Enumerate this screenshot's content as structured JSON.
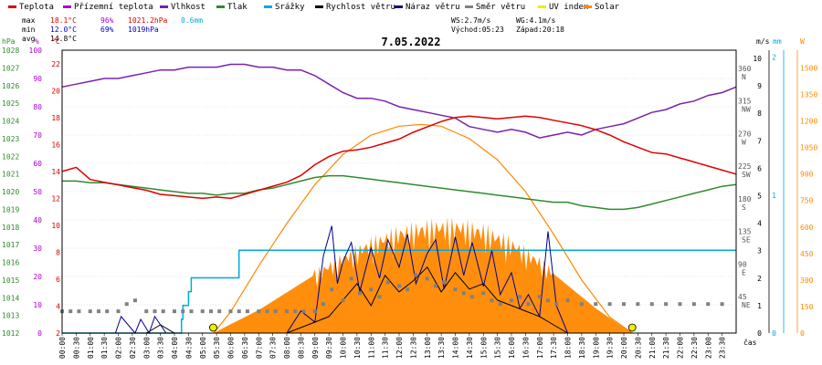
{
  "chart_data": {
    "type": "line",
    "title": "7.05.2022",
    "xlabel": "čas",
    "legend": [
      {
        "name": "Teplota",
        "color": "#dd0000"
      },
      {
        "name": "Přízemní teplota",
        "color": "#aa00cc"
      },
      {
        "name": "Vlhkost",
        "color": "#7a22aa"
      },
      {
        "name": "Tlak",
        "color": "#2e8b2e"
      },
      {
        "name": "Srážky",
        "color": "#00aadd"
      },
      {
        "name": "Rychlost větru",
        "color": "#000000"
      },
      {
        "name": "Náraz větru",
        "color": "#000088"
      },
      {
        "name": "Směr větru",
        "color": "#808080"
      },
      {
        "name": "UV index",
        "color": "#eeee00"
      },
      {
        "name": "Solar",
        "color": "#ff8800"
      }
    ],
    "stats": {
      "max": {
        "label": "max",
        "temp": "18.1°C",
        "hum": "96%",
        "press": "1021.2hPa",
        "rain": "0.6mm"
      },
      "min": {
        "label": "min",
        "temp": "12.0°C",
        "hum": "69%",
        "press": "1019hPa"
      },
      "avg": {
        "label": "avg",
        "temp": "14.8°C"
      }
    },
    "wind_info": {
      "ws": "WS:2.7m/s",
      "wg": "WG:4.1m/s",
      "sunrise": "Východ:05:23",
      "sunset": "Západ:20:18"
    },
    "axes": {
      "hpa": {
        "unit": "hPa",
        "ticks": [
          "1028",
          "1027",
          "1026",
          "1025",
          "1024",
          "1023",
          "1022",
          "1021",
          "1020",
          "1019",
          "1018",
          "1017",
          "1016",
          "1015",
          "1014",
          "1013",
          "1012"
        ],
        "range": [
          1012,
          1028
        ]
      },
      "humidity": {
        "unit": "%",
        "ticks": [
          "100",
          "90",
          "80",
          "70",
          "60",
          "50",
          "40",
          "30",
          "20",
          "10",
          "0"
        ],
        "range": [
          0,
          100
        ]
      },
      "temp": {
        "unit": "°C",
        "ticks": [
          "22",
          "20",
          "18",
          "16",
          "14",
          "12",
          "10",
          "8",
          "6",
          "4",
          "2"
        ],
        "range": [
          2,
          23
        ]
      },
      "wind_dir": {
        "ticks": [
          {
            "deg": "360",
            "dir": "N"
          },
          {
            "deg": "315",
            "dir": "NW"
          },
          {
            "deg": "270",
            "dir": "W"
          },
          {
            "deg": "225",
            "dir": "SW"
          },
          {
            "deg": "180",
            "dir": "S"
          },
          {
            "deg": "135",
            "dir": "SE"
          },
          {
            "deg": "90",
            "dir": "E"
          },
          {
            "deg": "45",
            "dir": "NE"
          }
        ]
      },
      "wind_speed": {
        "unit": "m/s",
        "ticks": [
          "10",
          "9",
          "8",
          "7",
          "6",
          "5",
          "4",
          "3",
          "2",
          "1",
          "0"
        ],
        "range": [
          0,
          10
        ]
      },
      "rain": {
        "unit": "mm",
        "ticks": [
          "2",
          "1",
          "0"
        ],
        "range": [
          0,
          2
        ]
      },
      "solar": {
        "unit": "W",
        "ticks": [
          "1500",
          "1350",
          "1200",
          "1050",
          "900",
          "750",
          "600",
          "450",
          "300",
          "150",
          "0"
        ],
        "range": [
          0,
          1600
        ]
      },
      "time_ticks": [
        "00:00",
        "00:30",
        "01:00",
        "01:30",
        "02:00",
        "02:30",
        "03:00",
        "03:30",
        "04:00",
        "04:30",
        "05:00",
        "05:30",
        "06:00",
        "06:30",
        "07:00",
        "07:30",
        "08:00",
        "08:30",
        "09:00",
        "09:30",
        "10:00",
        "10:30",
        "11:00",
        "11:30",
        "12:00",
        "12:30",
        "13:00",
        "13:30",
        "14:00",
        "14:30",
        "15:00",
        "15:30",
        "16:00",
        "16:30",
        "17:00",
        "17:30",
        "18:00",
        "18:30",
        "19:00",
        "19:30",
        "20:00",
        "20:30",
        "21:00",
        "21:30",
        "22:00",
        "22:30",
        "23:00",
        "23:30"
      ]
    },
    "series": [
      {
        "name": "Teplota",
        "color": "#dd0000",
        "x": [
          0,
          0.5,
          1,
          1.5,
          2,
          2.5,
          3,
          3.5,
          4,
          4.5,
          5,
          5.5,
          6,
          6.5,
          7,
          7.5,
          8,
          8.5,
          9,
          9.5,
          10,
          10.5,
          11,
          11.5,
          12,
          12.5,
          13,
          13.5,
          14,
          14.5,
          15,
          15.5,
          16,
          16.5,
          17,
          17.5,
          18,
          18.5,
          19,
          19.5,
          20,
          20.5,
          21,
          21.5,
          22,
          22.5,
          23,
          23.5,
          24
        ],
        "y": [
          14.0,
          14.3,
          13.4,
          13.2,
          13.0,
          12.8,
          12.6,
          12.3,
          12.2,
          12.1,
          12.0,
          12.1,
          12.0,
          12.3,
          12.6,
          12.9,
          13.2,
          13.7,
          14.5,
          15.1,
          15.5,
          15.6,
          15.8,
          16.1,
          16.4,
          16.9,
          17.3,
          17.7,
          18.0,
          18.1,
          18.0,
          17.9,
          18.0,
          18.1,
          18.0,
          17.8,
          17.6,
          17.4,
          17.1,
          16.7,
          16.2,
          15.8,
          15.4,
          15.3,
          15.0,
          14.7,
          14.4,
          14.1,
          13.8
        ]
      },
      {
        "name": "Vlhkost",
        "color": "#7a22aa",
        "x": [
          0,
          0.5,
          1,
          1.5,
          2,
          2.5,
          3,
          3.5,
          4,
          4.5,
          5,
          5.5,
          6,
          6.5,
          7,
          7.5,
          8,
          8.5,
          9,
          9.5,
          10,
          10.5,
          11,
          11.5,
          12,
          12.5,
          13,
          13.5,
          14,
          14.5,
          15,
          15.5,
          16,
          16.5,
          17,
          17.5,
          18,
          18.5,
          19,
          19.5,
          20,
          20.5,
          21,
          21.5,
          22,
          22.5,
          23,
          23.5,
          24
        ],
        "y": [
          87,
          88,
          89,
          90,
          90,
          91,
          92,
          93,
          93,
          94,
          94,
          94,
          95,
          95,
          94,
          94,
          93,
          93,
          91,
          88,
          85,
          83,
          83,
          82,
          80,
          79,
          78,
          77,
          76,
          73,
          72,
          71,
          72,
          71,
          69,
          70,
          71,
          70,
          72,
          73,
          74,
          76,
          78,
          79,
          81,
          82,
          84,
          85,
          87
        ]
      },
      {
        "name": "Tlak",
        "color": "#2e8b2e",
        "x": [
          0,
          0.5,
          1,
          1.5,
          2,
          2.5,
          3,
          3.5,
          4,
          4.5,
          5,
          5.5,
          6,
          6.5,
          7,
          7.5,
          8,
          8.5,
          9,
          9.5,
          10,
          10.5,
          11,
          11.5,
          12,
          12.5,
          13,
          13.5,
          14,
          14.5,
          15,
          15.5,
          16,
          16.5,
          17,
          17.5,
          18,
          18.5,
          19,
          19.5,
          20,
          20.5,
          21,
          21.5,
          22,
          22.5,
          23,
          23.5,
          24
        ],
        "y": [
          1020.6,
          1020.6,
          1020.5,
          1020.5,
          1020.4,
          1020.3,
          1020.2,
          1020.1,
          1020.0,
          1019.9,
          1019.9,
          1019.8,
          1019.9,
          1019.9,
          1020.1,
          1020.2,
          1020.4,
          1020.6,
          1020.8,
          1020.9,
          1020.9,
          1020.8,
          1020.7,
          1020.6,
          1020.5,
          1020.4,
          1020.3,
          1020.2,
          1020.1,
          1020.0,
          1019.9,
          1019.8,
          1019.7,
          1019.6,
          1019.5,
          1019.4,
          1019.4,
          1019.2,
          1019.1,
          1019.0,
          1019.0,
          1019.1,
          1019.3,
          1019.5,
          1019.7,
          1019.9,
          1020.1,
          1020.3,
          1020.4
        ]
      },
      {
        "name": "Srážky",
        "color": "#00aadd",
        "x": [
          0,
          4.1,
          4.25,
          4.3,
          4.5,
          4.6,
          5.8,
          6.2,
          6.3,
          24
        ],
        "y": [
          0,
          0,
          0.1,
          0.2,
          0.3,
          0.4,
          0.4,
          0.4,
          0.6,
          0.6
        ]
      },
      {
        "name": "Rychlost větru",
        "color": "#000000",
        "x": [
          0,
          3,
          3.5,
          4,
          8,
          9,
          9.5,
          10,
          10.5,
          11,
          11.5,
          12,
          12.5,
          13,
          13.5,
          14,
          14.5,
          15,
          15.5,
          16,
          16.5,
          17,
          17.5,
          18,
          24
        ],
        "y": [
          0,
          0,
          0.3,
          0,
          0,
          0.4,
          0.6,
          1.2,
          1.8,
          1.0,
          2.1,
          1.5,
          1.9,
          2.4,
          1.5,
          2.2,
          1.6,
          1.8,
          1.2,
          1.0,
          0.8,
          0.6,
          0.3,
          0,
          0
        ]
      },
      {
        "name": "Náraz větru",
        "color": "#000088",
        "x": [
          0,
          1.9,
          2.1,
          2.6,
          2.8,
          3.1,
          3.3,
          3.7,
          4,
          8,
          8.5,
          9,
          9.3,
          9.6,
          9.8,
          10,
          10.3,
          10.6,
          11,
          11.3,
          11.6,
          12,
          12.3,
          12.6,
          13,
          13.3,
          13.6,
          14,
          14.3,
          14.6,
          15,
          15.3,
          15.6,
          16,
          16.3,
          16.6,
          17,
          17.3,
          17.6,
          18,
          24
        ],
        "y": [
          0,
          0,
          0.6,
          0,
          0.5,
          0,
          0.6,
          0,
          0,
          0,
          0.8,
          0.4,
          2.8,
          3.9,
          1.8,
          2.6,
          3.3,
          1.5,
          3.1,
          2.0,
          3.4,
          2.4,
          3.6,
          1.8,
          2.9,
          3.4,
          1.6,
          3.5,
          2.1,
          3.3,
          1.7,
          3.0,
          1.4,
          2.2,
          0.9,
          1.4,
          0.6,
          3.7,
          1.0,
          0,
          0
        ]
      },
      {
        "name": "Solar",
        "color": "#ff8800",
        "x": [
          5.4,
          6,
          7,
          8,
          9,
          10,
          11,
          12,
          13,
          14,
          15,
          16,
          17,
          18,
          19,
          20,
          20.3
        ],
        "y": [
          0,
          50,
          130,
          230,
          330,
          420,
          500,
          560,
          590,
          600,
          570,
          500,
          400,
          270,
          140,
          30,
          0
        ]
      }
    ],
    "envelope": {
      "name": "Solar clear-sky",
      "color": "#ff8800",
      "x": [
        5.4,
        6,
        7,
        8,
        9,
        10,
        11,
        12,
        12.8,
        13.5,
        14.5,
        15.5,
        16.5,
        17.5,
        18.5,
        19.5,
        20.3
      ],
      "y": [
        0,
        120,
        380,
        620,
        840,
        1010,
        1120,
        1170,
        1180,
        1170,
        1100,
        980,
        800,
        560,
        300,
        90,
        0
      ]
    },
    "wind_direction_points": {
      "name": "Směr větru",
      "x": [
        0,
        0.3,
        0.6,
        1,
        1.3,
        1.6,
        2,
        2.3,
        2.6,
        3,
        3.3,
        3.6,
        4,
        4.3,
        4.6,
        5,
        5.3,
        5.6,
        6,
        6.3,
        6.6,
        7,
        7.3,
        7.6,
        8,
        8.3,
        8.6,
        9,
        9.3,
        9.6,
        10,
        10.3,
        10.6,
        11,
        11.3,
        11.6,
        12,
        12.3,
        12.6,
        13,
        13.3,
        13.6,
        14,
        14.3,
        14.6,
        15,
        15.3,
        15.6,
        16,
        16.3,
        16.6,
        17,
        17.3,
        17.6,
        18,
        18.5,
        19,
        19.5,
        20,
        20.5,
        21,
        21.5,
        22,
        22.5,
        23,
        23.5
      ],
      "y": [
        30,
        30,
        30,
        30,
        30,
        30,
        30,
        40,
        45,
        30,
        30,
        30,
        30,
        30,
        30,
        30,
        30,
        30,
        30,
        30,
        30,
        30,
        30,
        30,
        30,
        30,
        30,
        30,
        40,
        60,
        45,
        75,
        55,
        60,
        50,
        70,
        65,
        60,
        80,
        75,
        65,
        70,
        60,
        55,
        50,
        55,
        45,
        40,
        45,
        50,
        40,
        50,
        45,
        40,
        45,
        40,
        40,
        40,
        40,
        40,
        40,
        40,
        40,
        40,
        40,
        40
      ]
    }
  }
}
